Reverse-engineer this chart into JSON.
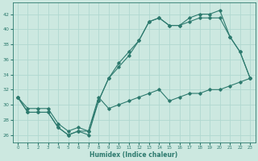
{
  "xlabel": "Humidex (Indice chaleur)",
  "ylabel": "",
  "bg_color": "#cce8e0",
  "line_color": "#2d7a6e",
  "grid_color": "#b0d8d0",
  "xlim": [
    -0.5,
    23.5
  ],
  "ylim": [
    25,
    43.5
  ],
  "yticks": [
    26,
    28,
    30,
    32,
    34,
    36,
    38,
    40,
    42
  ],
  "xticks": [
    0,
    1,
    2,
    3,
    4,
    5,
    6,
    7,
    8,
    9,
    10,
    11,
    12,
    13,
    14,
    15,
    16,
    17,
    18,
    19,
    20,
    21,
    22,
    23
  ],
  "series1_x": [
    0,
    1,
    2,
    3,
    4,
    5,
    6,
    7,
    8,
    9,
    10,
    11,
    12,
    13,
    14,
    15,
    16,
    17,
    18,
    19,
    20,
    21,
    22,
    23
  ],
  "series1_y": [
    31.0,
    29.0,
    29.0,
    29.0,
    27.0,
    26.0,
    26.5,
    26.5,
    30.5,
    33.5,
    35.0,
    36.5,
    38.5,
    41.0,
    41.5,
    40.5,
    40.5,
    41.0,
    41.5,
    41.5,
    41.5,
    39.0,
    37.0,
    33.5
  ],
  "series2_x": [
    0,
    1,
    2,
    3,
    4,
    5,
    6,
    7,
    8,
    9,
    10,
    11,
    12,
    13,
    14,
    15,
    16,
    17,
    18,
    19,
    20,
    21,
    22,
    23
  ],
  "series2_y": [
    31.0,
    29.0,
    29.0,
    29.0,
    27.0,
    26.0,
    26.5,
    26.0,
    30.5,
    33.5,
    35.5,
    37.0,
    38.5,
    41.0,
    41.5,
    40.5,
    40.5,
    41.5,
    42.0,
    42.0,
    42.5,
    39.0,
    37.0,
    33.5
  ],
  "series3_x": [
    0,
    1,
    2,
    3,
    4,
    5,
    6,
    7,
    8,
    9,
    10,
    11,
    12,
    13,
    14,
    15,
    16,
    17,
    18,
    19,
    20,
    21,
    22,
    23
  ],
  "series3_y": [
    31.0,
    29.5,
    29.5,
    29.5,
    27.5,
    26.5,
    27.0,
    26.5,
    31.0,
    29.5,
    30.0,
    30.5,
    31.0,
    31.5,
    32.0,
    30.5,
    31.0,
    31.5,
    31.5,
    32.0,
    32.0,
    32.5,
    33.0,
    33.5
  ]
}
